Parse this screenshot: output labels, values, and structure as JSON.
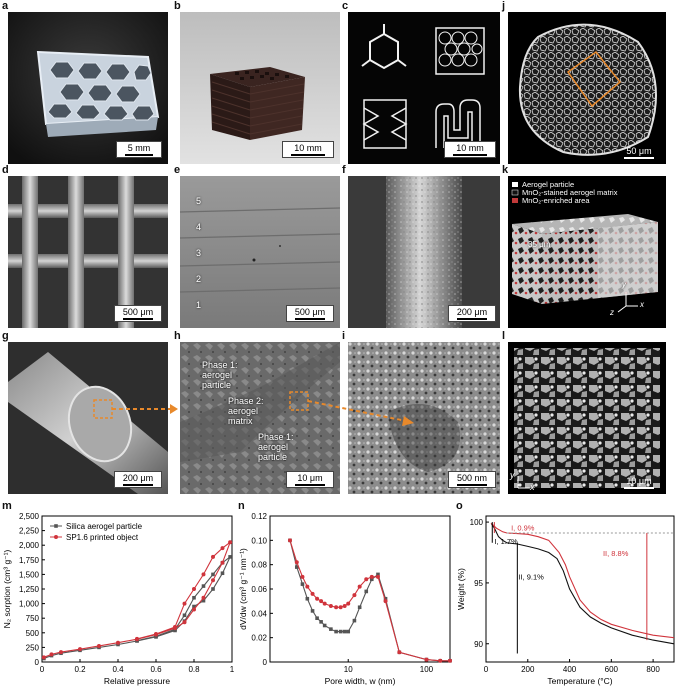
{
  "panels": {
    "a": {
      "label": "a",
      "scale": "5 mm"
    },
    "b": {
      "label": "b",
      "scale": "10 mm"
    },
    "c": {
      "label": "c",
      "scale": "10 mm"
    },
    "j": {
      "label": "j",
      "scale": "50 μm"
    },
    "d": {
      "label": "d",
      "scale": "500 μm"
    },
    "e": {
      "label": "e",
      "scale": "500 μm",
      "layers": [
        "5",
        "4",
        "3",
        "2",
        "1"
      ]
    },
    "f": {
      "label": "f",
      "scale": "200 μm"
    },
    "k": {
      "label": "k",
      "legend": [
        "Aerogel particle",
        "MnO₂-stained aerogel matrix",
        "MnO₂-enriched area"
      ],
      "depth": "35 μm",
      "axes": [
        "y",
        "z",
        "x"
      ]
    },
    "g": {
      "label": "g",
      "scale": "200 μm"
    },
    "h": {
      "label": "h",
      "scale": "10 μm",
      "phase1a": [
        "Phase 1:",
        "aerogel",
        "particle"
      ],
      "phase2": [
        "Phase 2:",
        "aerogel",
        "matrix"
      ],
      "phase1b": [
        "Phase 1:",
        "aerogel",
        "particle"
      ]
    },
    "i": {
      "label": "i",
      "scale": "500 nm"
    },
    "l": {
      "label": "l",
      "scale": "10 μm",
      "axes": [
        "y",
        "x"
      ]
    }
  },
  "colors": {
    "grey_series": "#555555",
    "red_series": "#d0343c",
    "orange_dash": "#e8892b"
  },
  "chart_data": [
    {
      "panel": "m",
      "type": "line",
      "xlabel": "Relative pressure",
      "ylabel": "N₂ sorption (cm³ g⁻¹)",
      "xlim": [
        0,
        1
      ],
      "ylim": [
        0,
        2500
      ],
      "xticks": [
        "0",
        "0.2",
        "0.4",
        "0.6",
        "0.8",
        "1"
      ],
      "yticks": [
        "0",
        "250",
        "500",
        "750",
        "1,000",
        "1,250",
        "1,500",
        "1,750",
        "2,000",
        "2,250",
        "2,500"
      ],
      "legend": "top-left",
      "series": [
        {
          "name": "Silica aerogel particle",
          "color": "#555555",
          "x": [
            0.01,
            0.05,
            0.1,
            0.2,
            0.3,
            0.4,
            0.5,
            0.6,
            0.7,
            0.75,
            0.8,
            0.85,
            0.9,
            0.95,
            0.99,
            0.95,
            0.9,
            0.85,
            0.8,
            0.75,
            0.7,
            0.6,
            0.5
          ],
          "y": [
            60,
            110,
            150,
            200,
            250,
            300,
            360,
            430,
            540,
            700,
            950,
            1050,
            1250,
            1520,
            1800,
            1700,
            1500,
            1300,
            1100,
            800,
            560,
            440,
            365
          ]
        },
        {
          "name": "SP1.6 printed object",
          "color": "#d0343c",
          "x": [
            0.01,
            0.05,
            0.1,
            0.2,
            0.3,
            0.4,
            0.5,
            0.6,
            0.7,
            0.75,
            0.8,
            0.85,
            0.9,
            0.95,
            0.99,
            0.95,
            0.9,
            0.85,
            0.8,
            0.75,
            0.7,
            0.6,
            0.5
          ],
          "y": [
            80,
            130,
            170,
            220,
            275,
            330,
            390,
            470,
            580,
            680,
            900,
            1100,
            1400,
            1700,
            2050,
            1950,
            1800,
            1500,
            1250,
            1000,
            600,
            480,
            395
          ]
        }
      ]
    },
    {
      "panel": "n",
      "type": "line",
      "xlabel": "Pore width, w (nm)",
      "ylabel": "dV/dw (cm³ g⁻¹ nm⁻¹)",
      "xscale": "log",
      "xlim": [
        1,
        200
      ],
      "ylim": [
        0,
        0.12
      ],
      "xticks": [
        "10",
        "100"
      ],
      "yticks": [
        "0",
        "0.02",
        "0.04",
        "0.06",
        "0.08",
        "0.10",
        "0.12"
      ],
      "series": [
        {
          "color": "#555555",
          "x": [
            1.8,
            2.2,
            2.6,
            3,
            3.5,
            4,
            4.5,
            5,
            6,
            7,
            8,
            9,
            10,
            12,
            14,
            17,
            20,
            24,
            30,
            45,
            100,
            150,
            200
          ],
          "y": [
            0.1,
            0.078,
            0.064,
            0.052,
            0.042,
            0.036,
            0.033,
            0.03,
            0.027,
            0.025,
            0.025,
            0.025,
            0.025,
            0.034,
            0.045,
            0.058,
            0.068,
            0.072,
            0.052,
            0.008,
            0.002,
            0.001,
            0.001
          ]
        },
        {
          "color": "#d0343c",
          "x": [
            1.8,
            2.2,
            2.6,
            3,
            3.5,
            4,
            4.5,
            5,
            6,
            7,
            8,
            9,
            10,
            12,
            14,
            17,
            20,
            24,
            30,
            45,
            100,
            150,
            200
          ],
          "y": [
            0.1,
            0.082,
            0.07,
            0.062,
            0.056,
            0.052,
            0.05,
            0.048,
            0.046,
            0.045,
            0.045,
            0.046,
            0.048,
            0.055,
            0.062,
            0.068,
            0.07,
            0.07,
            0.05,
            0.008,
            0.002,
            0.001,
            0.001
          ]
        }
      ]
    },
    {
      "panel": "o",
      "type": "line",
      "xlabel": "Temperature (°C)",
      "ylabel": "Weight (%)",
      "xlim": [
        0,
        900
      ],
      "ylim": [
        88.5,
        100.5
      ],
      "xticks": [
        "0",
        "200",
        "400",
        "600",
        "800"
      ],
      "yticks": [
        "90",
        "95",
        "100"
      ],
      "annotations": [
        "I, 0.9%",
        "II, 8.8%",
        "I, 1.7%",
        "II, 9.1%"
      ],
      "series": [
        {
          "color": "#111111",
          "x": [
            25,
            40,
            60,
            80,
            100,
            150,
            200,
            250,
            300,
            340,
            370,
            400,
            450,
            500,
            550,
            600,
            700,
            800,
            900
          ],
          "y": [
            99.9,
            99.5,
            98.8,
            98.5,
            98.3,
            98.2,
            98.0,
            97.8,
            97.5,
            97,
            96,
            94.5,
            93,
            92.2,
            91.7,
            91.3,
            90.7,
            90.3,
            90.0
          ]
        },
        {
          "color": "#d0343c",
          "x": [
            25,
            50,
            80,
            100,
            150,
            200,
            250,
            300,
            350,
            380,
            400,
            450,
            500,
            550,
            600,
            700,
            800,
            900
          ],
          "y": [
            99.9,
            99.5,
            99.2,
            99.1,
            99.05,
            99.0,
            98.8,
            98.5,
            97.5,
            96.5,
            95.5,
            93.6,
            92.6,
            92.0,
            91.6,
            91.1,
            90.7,
            90.5
          ]
        }
      ]
    }
  ]
}
